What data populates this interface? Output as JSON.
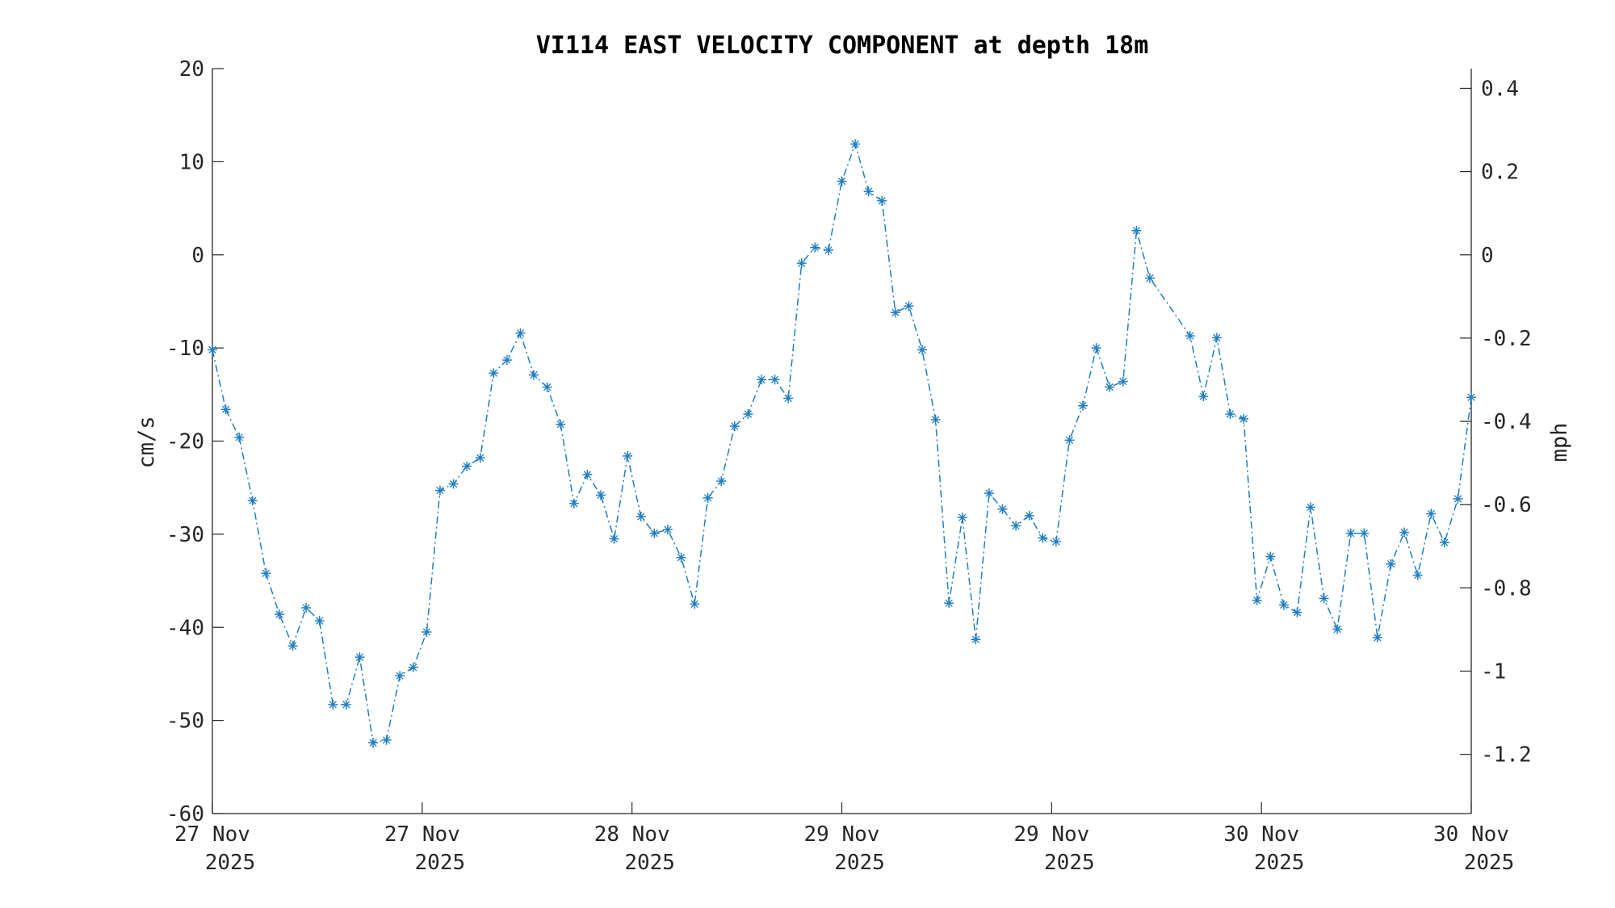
{
  "chart_data": {
    "type": "line",
    "title": "VI114 EAST VELOCITY COMPONENT at depth 18m",
    "ylabel_left": "cm/s",
    "ylabel_right": "mph",
    "xlabel": "",
    "ylim_left": [
      -60,
      20
    ],
    "ylim_right_note": "same scale as left axis converted to mph",
    "yticks_left": [
      "20",
      "10",
      "0",
      "-10",
      "-20",
      "-30",
      "-40",
      "-50",
      "-60"
    ],
    "yticks_right": [
      "0.4",
      "0.2",
      "0",
      "-0.2",
      "-0.4",
      "-0.6",
      "-0.8",
      "-1",
      "-1.2"
    ],
    "yticks_right_values": [
      0.4,
      0.2,
      0,
      -0.2,
      -0.4,
      -0.6,
      -0.8,
      -1,
      -1.2
    ],
    "xticks": [
      {
        "line1": "27 Nov",
        "line2": "2025"
      },
      {
        "line1": "27 Nov",
        "line2": "2025"
      },
      {
        "line1": "28 Nov",
        "line2": "2025"
      },
      {
        "line1": "29 Nov",
        "line2": "2025"
      },
      {
        "line1": "29 Nov",
        "line2": "2025"
      },
      {
        "line1": "30 Nov",
        "line2": "2025"
      },
      {
        "line1": "30 Nov",
        "line2": "2025"
      }
    ],
    "marker": "asterisk",
    "line_style": "dash-dot",
    "grid": false,
    "legend": "none",
    "series": [
      {
        "color": "#1f7ec4",
        "values": [
          -10.2,
          -16.6,
          -19.6,
          -26.4,
          -34.2,
          -38.6,
          -42.0,
          -37.9,
          -39.3,
          -48.3,
          -48.3,
          -43.2,
          -52.4,
          -52.1,
          -45.2,
          -44.3,
          -40.5,
          -25.3,
          -24.6,
          -22.7,
          -21.8,
          -12.7,
          -11.3,
          -8.4,
          -12.9,
          -14.2,
          -18.2,
          -26.7,
          -23.6,
          -25.8,
          -30.5,
          -21.6,
          -28.1,
          -29.9,
          -29.5,
          -32.5,
          -37.5,
          -26.1,
          -24.3,
          -18.4,
          -17.1,
          -13.4,
          -13.4,
          -15.4,
          -0.9,
          0.8,
          0.5,
          7.9,
          11.9,
          6.8,
          5.8,
          -6.2,
          -5.5,
          -10.2,
          -17.7,
          -37.4,
          -28.2,
          -41.3,
          -25.6,
          -27.3,
          -29.1,
          -28.0,
          -30.4,
          -30.8,
          -19.9,
          -16.2,
          -10.0,
          -14.2,
          -13.6,
          2.6,
          -2.5,
          -8.7,
          -15.2,
          -8.9,
          -17.1,
          -17.6,
          -37.1,
          -32.4,
          -37.6,
          -38.4,
          -27.1,
          -36.9,
          -40.2,
          -29.9,
          -29.9,
          -41.1,
          -33.2,
          -29.8,
          -34.4,
          -27.8,
          -30.9,
          -26.2,
          -15.3
        ],
        "x_positions_fraction_note": "samples evenly spaced across the time axis except a gap after the peak near 30 Nov"
      }
    ]
  }
}
